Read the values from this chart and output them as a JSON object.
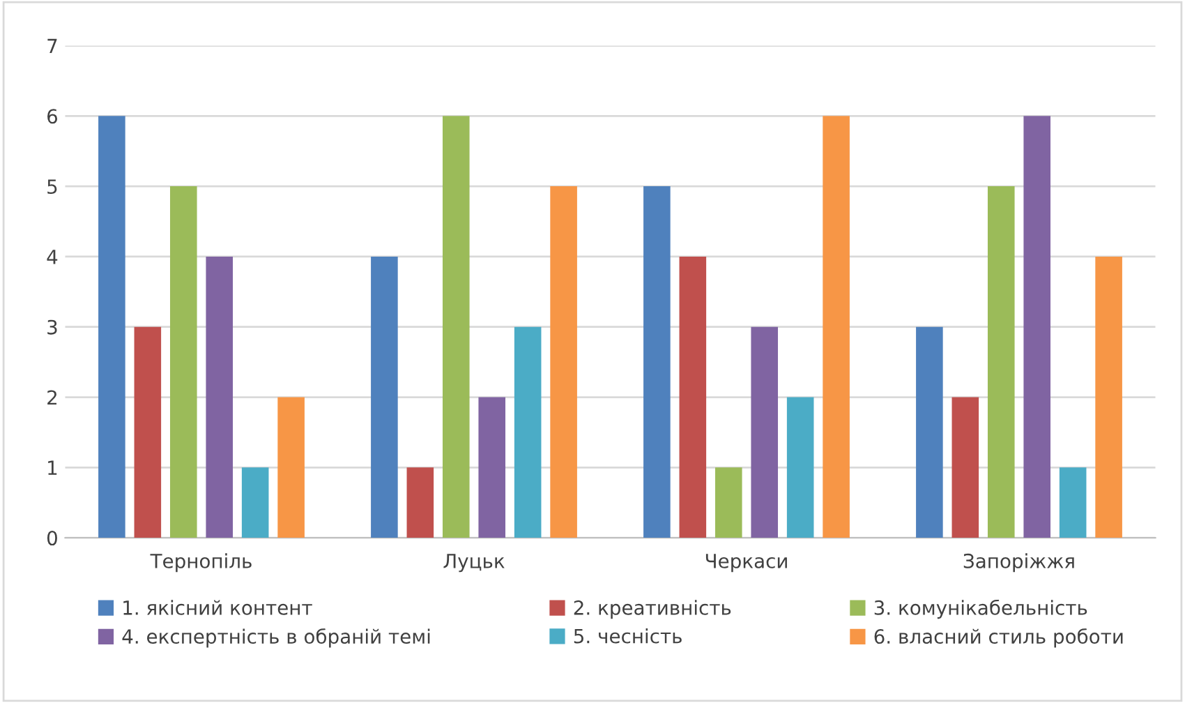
{
  "chart_data": {
    "type": "bar",
    "categories": [
      "Тернопіль",
      "Луцьк",
      "Черкаси",
      "Запоріжжя"
    ],
    "series": [
      {
        "name": "1. якісний контент",
        "color": "#4f81bd",
        "values": [
          6,
          4,
          5,
          3
        ]
      },
      {
        "name": "2. креативність",
        "color": "#c0504d",
        "values": [
          3,
          1,
          4,
          2
        ]
      },
      {
        "name": "3. комунікабельність",
        "color": "#9bbb59",
        "values": [
          5,
          6,
          1,
          5
        ]
      },
      {
        "name": "4. експертність в обраній темі",
        "color": "#8064a2",
        "values": [
          4,
          2,
          3,
          6
        ]
      },
      {
        "name": "5. чесність",
        "color": "#4bacc6",
        "values": [
          1,
          3,
          2,
          1
        ]
      },
      {
        "name": "6. власний стиль роботи",
        "color": "#f79646",
        "values": [
          2,
          5,
          6,
          4
        ]
      }
    ],
    "ylim": [
      0,
      7
    ],
    "yticks": [
      0,
      1,
      2,
      3,
      4,
      5,
      6,
      7
    ],
    "grid": "y",
    "legend": "bottom"
  }
}
